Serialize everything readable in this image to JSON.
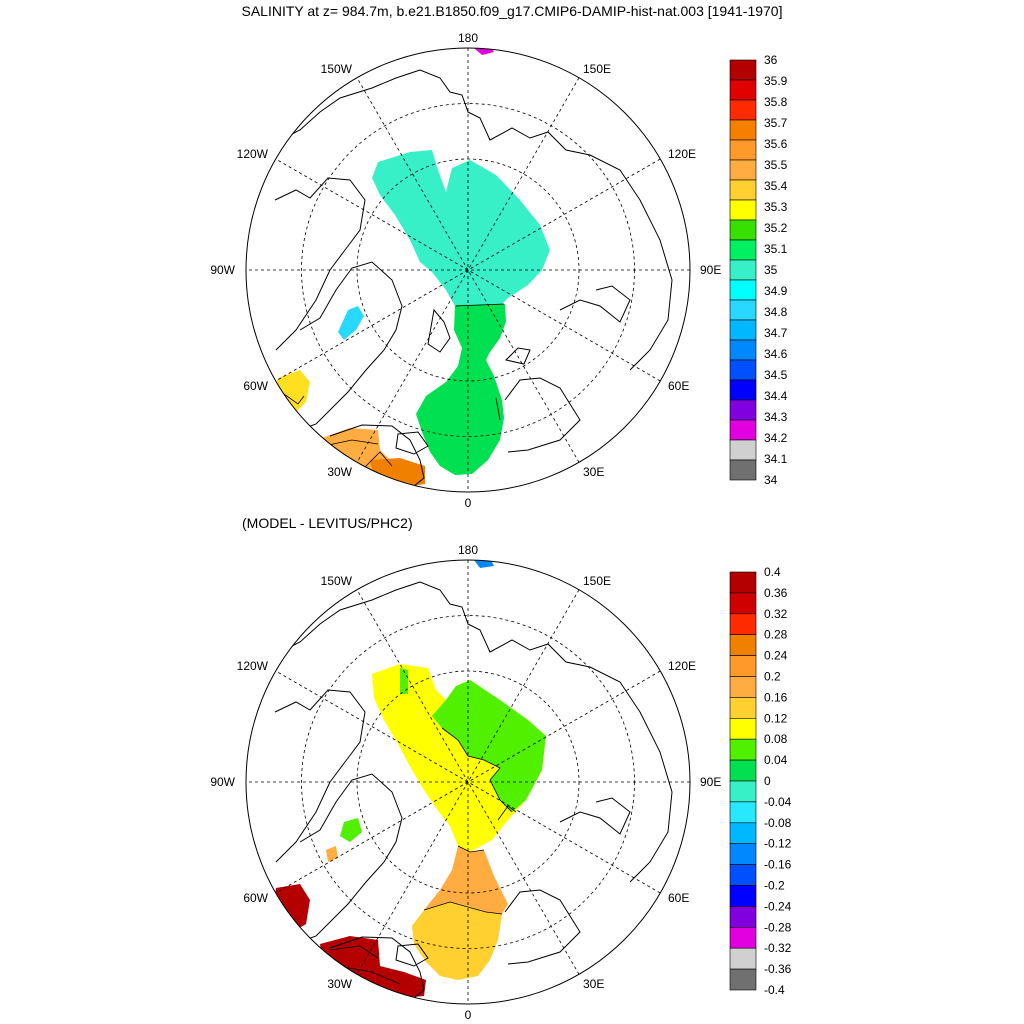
{
  "title": "SALINITY at z= 984.7m, b.e21.B1850.f09_g17.CMIP6-DAMIP-hist-nat.003 [1941-1970]",
  "subtitle": "(MODEL - LEVITUS/PHC2)",
  "longitude_labels": {
    "top": "180",
    "bottom": "0",
    "left": "90W",
    "right": "90E",
    "upper_left_1": "150W",
    "upper_left_2": "120W",
    "upper_right_1": "150E",
    "upper_right_2": "120E",
    "lower_left_1": "60W",
    "lower_left_2": "30W",
    "lower_right_1": "60E",
    "lower_right_2": "30E"
  },
  "panel1_colorbar": {
    "labels": [
      "36",
      "35.9",
      "35.8",
      "35.7",
      "35.6",
      "35.5",
      "35.4",
      "35.3",
      "35.2",
      "35.1",
      "35",
      "34.9",
      "34.8",
      "34.7",
      "34.6",
      "34.5",
      "34.4",
      "34.3",
      "34.2",
      "34.1",
      "34"
    ],
    "colors": [
      "#b40000",
      "#e00000",
      "#ff2a00",
      "#f77f00",
      "#ff9a2a",
      "#ffad40",
      "#ffd030",
      "#ffff00",
      "#38e000",
      "#00f060",
      "#38f0c8",
      "#00ffff",
      "#28d8ff",
      "#00b8ff",
      "#0088ff",
      "#0050ff",
      "#0000ff",
      "#8000e0",
      "#e000e0",
      "#d0d0d0",
      "#707070"
    ]
  },
  "panel2_colorbar": {
    "labels": [
      "0.4",
      "0.36",
      "0.32",
      "0.28",
      "0.24",
      "0.2",
      "0.16",
      "0.12",
      "0.08",
      "0.04",
      "0",
      "-0.04",
      "-0.08",
      "-0.12",
      "-0.16",
      "-0.2",
      "-0.24",
      "-0.28",
      "-0.32",
      "-0.36",
      "-0.4"
    ],
    "colors": [
      "#b40000",
      "#d00000",
      "#ff2a00",
      "#f08000",
      "#ff9a2a",
      "#ffad40",
      "#ffd030",
      "#ffff00",
      "#50f000",
      "#00e050",
      "#38f0c8",
      "#28e8ff",
      "#00b8ff",
      "#0088ff",
      "#0050ff",
      "#0000ff",
      "#8000e0",
      "#e000e0",
      "#d0d0d0",
      "#707070"
    ]
  },
  "colors": {
    "p1_central": "#38f0c8",
    "p1_atlantic": "#00e050",
    "p1_baffin": "#28d8ff",
    "p1_warm_yellow": "#ffe020",
    "p1_warm_orange": "#ffad40",
    "p1_deep_orange": "#f08000",
    "p1_magenta": "#e000e0",
    "p2_yellow": "#ffff00",
    "p2_green": "#50f000",
    "p2_orange": "#ffad40",
    "p2_gold": "#ffd030",
    "p2_red": "#b40000",
    "p2_blue": "#0088ff"
  }
}
